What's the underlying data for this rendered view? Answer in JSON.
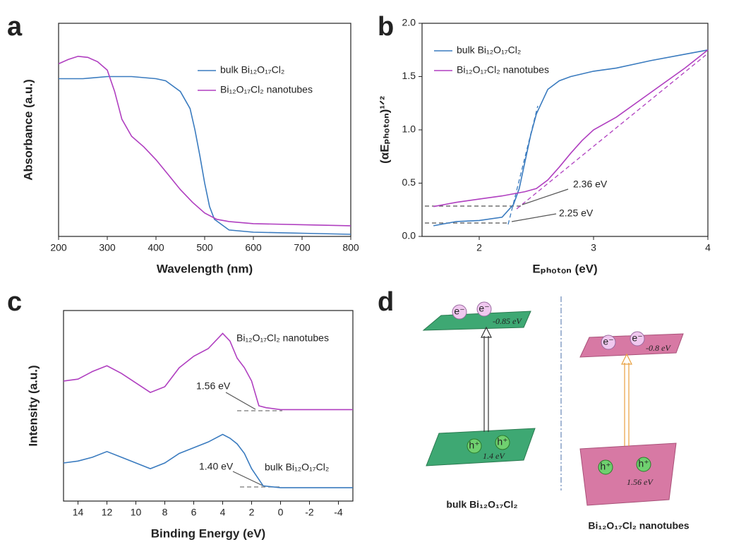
{
  "panel_labels": [
    "a",
    "b",
    "c",
    "d"
  ],
  "chart_data": [
    {
      "type": "line",
      "x_label": "Wavelength (nm)",
      "y_label": "Absorbance (a.u.)",
      "xlim": [
        200,
        800
      ],
      "xticks": [
        200,
        300,
        400,
        500,
        600,
        700,
        800
      ],
      "ylim": [
        0,
        1
      ],
      "legend": true,
      "series": [
        {
          "name": "bulk Bi₁₂O₁₇Cl₂",
          "color": "#3a7bbf",
          "x": [
            200,
            250,
            300,
            350,
            400,
            420,
            450,
            470,
            480,
            490,
            500,
            510,
            520,
            550,
            600,
            700,
            800
          ],
          "values": [
            0.74,
            0.74,
            0.75,
            0.75,
            0.74,
            0.73,
            0.68,
            0.6,
            0.5,
            0.38,
            0.25,
            0.14,
            0.08,
            0.03,
            0.02,
            0.015,
            0.01
          ]
        },
        {
          "name": "Bi₁₂O₁₇Cl₂ nanotubes",
          "color": "#b03fc0",
          "x": [
            200,
            220,
            240,
            260,
            280,
            300,
            315,
            330,
            350,
            375,
            400,
            425,
            450,
            475,
            500,
            525,
            550,
            600,
            700,
            800
          ],
          "values": [
            0.81,
            0.83,
            0.845,
            0.84,
            0.82,
            0.78,
            0.68,
            0.55,
            0.47,
            0.42,
            0.36,
            0.29,
            0.22,
            0.16,
            0.11,
            0.08,
            0.07,
            0.06,
            0.055,
            0.05
          ]
        }
      ]
    },
    {
      "type": "line",
      "x_label": "Eₚₕₒₜₒₙ (eV)",
      "y_label": "(αEₚₕₒₜₒₙ)¹ᐟ²",
      "xlim": [
        1.5,
        4
      ],
      "xticks": [
        2,
        3,
        4
      ],
      "ylim": [
        0,
        2
      ],
      "yticks": [
        {
          "value": 0,
          "label": "0.0"
        },
        {
          "value": 0.5,
          "label": "0.5"
        },
        {
          "value": 1,
          "label": "1.0"
        },
        {
          "value": 1.5,
          "label": "1.5"
        },
        {
          "value": 2,
          "label": "2.0"
        }
      ],
      "legend": true,
      "annotations": [
        "2.36 eV",
        "2.25 eV"
      ],
      "series": [
        {
          "name": "bulk Bi₁₂O₁₇Cl₂",
          "color": "#3a7bbf",
          "x": [
            1.6,
            1.8,
            2.0,
            2.2,
            2.3,
            2.35,
            2.4,
            2.45,
            2.5,
            2.6,
            2.7,
            2.8,
            3.0,
            3.2,
            3.5,
            3.8,
            4.0
          ],
          "values": [
            0.1,
            0.14,
            0.15,
            0.18,
            0.3,
            0.45,
            0.7,
            0.95,
            1.15,
            1.38,
            1.46,
            1.5,
            1.55,
            1.58,
            1.65,
            1.71,
            1.75
          ]
        },
        {
          "name": "Bi₁₂O₁₇Cl₂ nanotubes",
          "color": "#b03fc0",
          "x": [
            1.6,
            1.8,
            2.0,
            2.2,
            2.3,
            2.4,
            2.5,
            2.6,
            2.7,
            2.8,
            2.9,
            3.0,
            3.2,
            3.5,
            3.8,
            4.0
          ],
          "values": [
            0.28,
            0.32,
            0.35,
            0.38,
            0.4,
            0.42,
            0.45,
            0.53,
            0.65,
            0.78,
            0.9,
            1.0,
            1.12,
            1.35,
            1.58,
            1.75
          ]
        }
      ]
    },
    {
      "type": "line",
      "x_label": "Binding Energy (eV)",
      "y_label": "Intensity (a.u.)",
      "xlim": [
        15,
        -5
      ],
      "xticks": [
        14,
        12,
        10,
        8,
        6,
        4,
        2,
        0,
        -2,
        -4
      ],
      "ylim": [
        0,
        1
      ],
      "legend": false,
      "annotations": [
        "1.56 eV",
        "1.40 eV"
      ],
      "series": [
        {
          "name": "Bi₁₂O₁₇Cl₂ nanotubes",
          "color": "#b03fc0",
          "x": [
            15,
            14,
            13,
            12,
            11,
            10,
            9,
            8,
            7,
            6,
            5,
            4,
            3.5,
            3,
            2.5,
            2,
            1.5,
            1,
            0,
            -2,
            -5
          ],
          "values": [
            0.63,
            0.64,
            0.68,
            0.71,
            0.67,
            0.62,
            0.57,
            0.6,
            0.7,
            0.76,
            0.8,
            0.88,
            0.84,
            0.75,
            0.7,
            0.63,
            0.5,
            0.49,
            0.48,
            0.48,
            0.48
          ]
        },
        {
          "name": "bulk Bi₁₂O₁₇Cl₂",
          "color": "#3a7bbf",
          "x": [
            15,
            14,
            13,
            12,
            11,
            10,
            9,
            8,
            7,
            6,
            5,
            4,
            3.5,
            3,
            2.5,
            2,
            1.2,
            0,
            -2,
            -5
          ],
          "values": [
            0.2,
            0.21,
            0.23,
            0.26,
            0.23,
            0.2,
            0.17,
            0.2,
            0.25,
            0.28,
            0.31,
            0.35,
            0.33,
            0.3,
            0.25,
            0.17,
            0.08,
            0.07,
            0.07,
            0.07
          ]
        }
      ]
    }
  ],
  "diagram": {
    "electron": "e⁻",
    "hole": "h⁺",
    "bulk_cb": "-0.85 eV",
    "bulk_vb": "1.4 eV",
    "nano_cb": "-0.8 eV",
    "nano_vb": "1.56 eV",
    "bulk_label": "bulk Bi₁₂O₁₇Cl₂",
    "nano_label": "Bi₁₂O₁₇Cl₂ nanotubes"
  }
}
